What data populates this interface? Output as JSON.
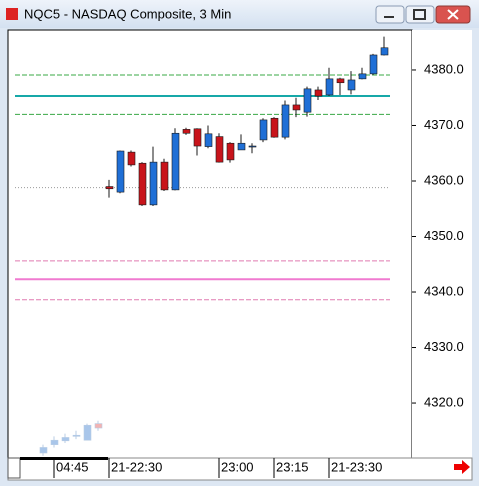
{
  "chart_data": {
    "type": "candlestick",
    "title": "NQC5 - NASDAQ Composite, 3 Min",
    "categories": [
      null,
      "04:45",
      null,
      null,
      null,
      null,
      "21-22:30",
      null,
      null,
      null,
      null,
      null,
      null,
      null,
      null,
      null,
      "23:00",
      null,
      null,
      null,
      null,
      "23:15",
      null,
      null,
      null,
      null,
      "21-23:30",
      null,
      null,
      null,
      null,
      null
    ],
    "series": [
      {
        "up_color": "#a9c6ea",
        "down_color": "#f2b3b3",
        "border": "#b8cce4",
        "open": [
          4311,
          4312.5,
          4313.2,
          4314,
          4313.3,
          4316.3,
          null,
          null,
          null,
          null,
          null,
          null,
          null,
          null,
          null,
          null,
          null,
          null,
          null,
          null,
          null,
          null,
          null,
          null,
          null,
          null,
          null,
          null,
          null,
          null,
          null,
          null
        ],
        "high": [
          4312.5,
          4314,
          4314.5,
          4315,
          4316.3,
          4316.8,
          null,
          null,
          null,
          null,
          null,
          null,
          null,
          null,
          null,
          null,
          null,
          null,
          null,
          null,
          null,
          null,
          null,
          null,
          null,
          null,
          null,
          null,
          null,
          null,
          null,
          null
        ],
        "low": [
          4310.5,
          4312,
          4312.8,
          4313.5,
          4313.3,
          4315,
          null,
          null,
          null,
          null,
          null,
          null,
          null,
          null,
          null,
          null,
          null,
          null,
          null,
          null,
          null,
          null,
          null,
          null,
          null,
          null,
          null,
          null,
          null,
          null,
          null,
          null
        ],
        "close": [
          4312,
          4313.3,
          4313.8,
          4314.2,
          4316,
          4315.5,
          null,
          null,
          null,
          null,
          null,
          null,
          null,
          null,
          null,
          null,
          null,
          null,
          null,
          null,
          null,
          null,
          null,
          null,
          null,
          null,
          null,
          null,
          null,
          null,
          null,
          null
        ]
      },
      {
        "up_color": "#1f6fd6",
        "down_color": "#c8141b",
        "border": "#1a1a1a",
        "open": [
          null,
          null,
          null,
          null,
          null,
          null,
          4359,
          4358,
          4365.2,
          4363.2,
          4355.7,
          4363.4,
          4358.4,
          4369.3,
          4369.4,
          4366.2,
          4368,
          4366.8,
          4365.6,
          4366.3,
          4367.4,
          4371.3,
          4367.9,
          4373.7,
          4372.4,
          4376.4,
          4375.5,
          4378.4,
          4376.4,
          4378.4,
          4379.3,
          4382.7
        ],
        "high": [
          null,
          null,
          null,
          null,
          null,
          null,
          4360.2,
          4365.5,
          4365.5,
          4363.4,
          4366.2,
          4364,
          4369.5,
          4369.6,
          4369.5,
          4370,
          4368.6,
          4367,
          4368.4,
          4366.8,
          4371.3,
          4371.5,
          4374.5,
          4375,
          4377,
          4377,
          4380.4,
          4378.6,
          4379.8,
          4380.4,
          4382.9,
          4386
        ],
        "low": [
          null,
          null,
          null,
          null,
          null,
          null,
          4357,
          4357.8,
          4362.6,
          4355.5,
          4355.5,
          4358.2,
          4358.3,
          4368.3,
          4364.6,
          4365.9,
          4363.3,
          4363.3,
          4365.6,
          4365,
          4367,
          4367.8,
          4367.5,
          4371.5,
          4371.6,
          4374.6,
          4375.3,
          4375.5,
          4375.6,
          4378.3,
          4379.1,
          4382.6
        ],
        "close": [
          null,
          null,
          null,
          null,
          null,
          null,
          4358.6,
          4365.4,
          4362.9,
          4355.7,
          4363.4,
          4358.4,
          4368.6,
          4368.6,
          4366.3,
          4368.5,
          4363.4,
          4363.8,
          4366.8,
          4366.3,
          4371,
          4367.9,
          4373.7,
          4372.8,
          4376.6,
          4375.3,
          4378.4,
          4377.7,
          4378.2,
          4379.3,
          4382.7,
          4384
        ]
      }
    ],
    "levels": [
      {
        "value": 4379.1,
        "color": "#39a845",
        "style": "dashed"
      },
      {
        "value": 4375.3,
        "color": "#16a8a8",
        "style": "solid"
      },
      {
        "value": 4372.0,
        "color": "#39a845",
        "style": "dashed"
      },
      {
        "value": 4358.8,
        "color": "#999999",
        "style": "dotted"
      },
      {
        "value": 4345.6,
        "color": "#e07ab0",
        "style": "dashed"
      },
      {
        "value": 4342.3,
        "color": "#f07ad0",
        "style": "solid"
      },
      {
        "value": 4338.6,
        "color": "#e07ab0",
        "style": "dashed"
      }
    ],
    "ylim": [
      4310.1,
      4387.2
    ],
    "yticks": [
      {
        "value": 4320,
        "label": "4320.0"
      },
      {
        "value": 4330,
        "label": "4330.0"
      },
      {
        "value": 4340,
        "label": "4340.0"
      },
      {
        "value": 4350,
        "label": "4350.0"
      },
      {
        "value": 4360,
        "label": "4360.0"
      },
      {
        "value": 4370,
        "label": "4370.0"
      },
      {
        "value": 4380,
        "label": "4380.0"
      }
    ]
  }
}
